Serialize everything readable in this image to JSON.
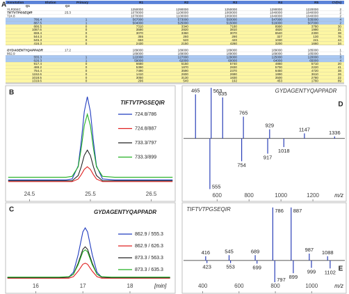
{
  "panel_labels": [
    "A",
    "B",
    "C",
    "D",
    "E"
  ],
  "table": {
    "header": [
      "Annotation",
      "Elution",
      "Primary",
      "R1",
      "R2",
      "R3",
      "R4",
      "R5",
      "CV(%)"
    ],
    "subheader": [
      "Q1",
      "Q3"
    ],
    "groups": [
      {
        "rows": [
          [
            "YLR304C",
            null,
            null,
            "1250000",
            "1290000",
            "1250000",
            "1290000",
            "1220000",
            "2"
          ],
          [
            "TIFTVTPGSEQIR",
            "25.3",
            null,
            "1070000",
            "1100000",
            "1060000",
            "1040000",
            "1040000",
            "2"
          ],
          [
            "724.8",
            null,
            null,
            "1070000",
            "1100000",
            "1060000",
            "1040000",
            "1040000",
            "2"
          ],
          [
            "786.4",
            null,
            "1",
            "567000",
            "573000",
            "593000",
            "547000",
            "535000",
            "4"
          ],
          [
            "887.5",
            null,
            "1",
            "504000",
            "525000",
            "515000",
            "516000",
            "507000",
            "2"
          ],
          [
            "886.5",
            null,
            "0",
            "7310",
            "3340",
            "7180",
            "8990",
            "3780",
            "30"
          ],
          [
            "1087.6",
            null,
            "0",
            "3590",
            "2820",
            "3810",
            "4820",
            "1990",
            "31"
          ],
          [
            "659.4",
            null,
            "0",
            "3070",
            "3360",
            "3070",
            "6540",
            "2300",
            "38"
          ],
          [
            "544.3",
            null,
            "0",
            "355",
            "260",
            "290",
            "327",
            "130",
            "76"
          ],
          [
            "645.3",
            null,
            "0",
            "650",
            "520",
            "420",
            "1030",
            "241",
            "44"
          ],
          [
            "416.3",
            null,
            "0",
            "2430",
            "2150",
            "4260",
            "3200",
            "1660",
            "34"
          ]
        ]
      },
      {
        "rows": [
          [
            "GYDAGENTYQAPPADR",
            "17.2",
            null,
            "189000",
            "189000",
            "189000",
            "189000",
            "185000",
            "1"
          ],
          [
            "862.9",
            null,
            null,
            "189000",
            "189000",
            "189000",
            "189000",
            "185000",
            "1"
          ],
          [
            "555.3",
            null,
            "1",
            "122000",
            "127000",
            "129000",
            "125000",
            "120000",
            "3"
          ],
          [
            "626.3",
            null,
            "1",
            "59000",
            "62000",
            "60000",
            "64000",
            "65000",
            "4"
          ],
          [
            "917.4",
            null,
            "0",
            "6680",
            "5150",
            "5740",
            "4860",
            "5710",
            "20"
          ],
          [
            "488.2",
            null,
            "0",
            "5390",
            "1870",
            "2830",
            "5700",
            "2220",
            "41"
          ],
          [
            "754.4",
            null,
            "0",
            "7490",
            "3590",
            "2370",
            "6450",
            "4720",
            "38"
          ],
          [
            "1152.6",
            null,
            "0",
            "1410",
            "2600",
            "2690",
            "1890",
            "3610",
            "26"
          ],
          [
            "1018.5",
            null,
            "0",
            "3050",
            "3130",
            "1830",
            "3500",
            "2780",
            "22"
          ],
          [
            "1319.6",
            null,
            "0",
            "296",
            "540",
            "192",
            "453",
            "1760",
            "89"
          ]
        ]
      }
    ]
  },
  "chart_data": [
    {
      "type": "line",
      "title": "TIFTVTPGSEQIR",
      "x": [
        24.15,
        24.8,
        25.1,
        25.2,
        25.3,
        25.35,
        25.4,
        25.45,
        25.5,
        25.55,
        25.6,
        25.7,
        25.9,
        26.2,
        26.85
      ],
      "series": [
        {
          "name": "724.8/786",
          "color": "#1f3bbf",
          "values": [
            3,
            3,
            3,
            4,
            19,
            47,
            81,
            98,
            81,
            47,
            19,
            4,
            3,
            3,
            3
          ]
        },
        {
          "name": "724.8/887",
          "color": "#e02020",
          "values": [
            1,
            1,
            1,
            1,
            4,
            9,
            15,
            18,
            15,
            9,
            4,
            1,
            1,
            1,
            1
          ]
        },
        {
          "name": "733.3/797",
          "color": "#202020",
          "values": [
            2,
            2,
            2,
            2,
            8,
            18,
            31,
            37,
            31,
            18,
            8,
            2,
            2,
            2,
            2
          ]
        },
        {
          "name": "733.3/899",
          "color": "#22b022",
          "values": [
            6,
            6,
            6,
            7,
            18,
            39,
            65,
            78,
            65,
            39,
            18,
            7,
            6,
            6,
            6
          ]
        }
      ],
      "xlim": [
        24.13,
        26.87
      ],
      "ylim": [
        0,
        105
      ],
      "xticks": [
        24.5,
        25.5,
        26.5
      ]
    },
    {
      "type": "line",
      "title": "GYDAGENTYQAPPADR",
      "xlabel": "[min]",
      "x": [
        15.4,
        16.0,
        16.5,
        16.7,
        16.8,
        16.9,
        17.0,
        17.05,
        17.1,
        17.2,
        17.3,
        17.4,
        17.6,
        18.0,
        18.5,
        18.85
      ],
      "series": [
        {
          "name": "862.9 / 555.3",
          "color": "#1f3bbf",
          "values": [
            2,
            2,
            2,
            3,
            13,
            48,
            94,
            102,
            94,
            48,
            13,
            3,
            2,
            2,
            2,
            2
          ]
        },
        {
          "name": "862.9 / 626.3",
          "color": "#e02020",
          "values": [
            1,
            1,
            1,
            1,
            4,
            15,
            29,
            31,
            29,
            15,
            4,
            1,
            1,
            1,
            1,
            1
          ]
        },
        {
          "name": "873.3 / 563.3",
          "color": "#202020",
          "values": [
            2,
            2,
            2,
            3,
            9,
            31,
            59,
            64,
            59,
            31,
            9,
            3,
            2,
            2,
            2,
            2
          ]
        },
        {
          "name": "873.3 / 635.3",
          "color": "#22b022",
          "values": [
            3,
            3,
            3,
            4,
            9,
            28,
            54,
            58,
            54,
            28,
            9,
            4,
            3,
            3,
            3,
            3
          ]
        }
      ],
      "xlim": [
        15.39,
        18.9
      ],
      "ylim": [
        0,
        140
      ],
      "xticks": [
        16,
        17,
        18
      ]
    },
    {
      "type": "stem",
      "title": "GYDAGENTYQAPPADR",
      "xlabel": "m/z",
      "color": "#2a3fb8",
      "x": [
        465,
        563,
        635,
        765,
        929,
        1147,
        1336,
        555,
        754,
        917,
        1018
      ],
      "values": [
        87,
        100,
        81,
        43,
        18,
        10,
        4,
        -100,
        -45,
        -30,
        -17
      ],
      "xlim": [
        390,
        1400
      ],
      "ylim": [
        -120,
        100
      ],
      "xticks": [
        600,
        800,
        1000,
        1200
      ]
    },
    {
      "type": "stem",
      "title": "TIFTVTPGSEQIR",
      "xlabel": "m/z",
      "color": "#2a3fb8",
      "x": [
        416,
        545,
        689,
        786,
        887,
        987,
        1088,
        423,
        553,
        699,
        797,
        899,
        999,
        1102
      ],
      "values": [
        8,
        10,
        10,
        100,
        100,
        13,
        8,
        -5,
        -5,
        -6,
        -41,
        -24,
        -14,
        -15
      ],
      "xlim": [
        294,
        1183
      ],
      "ylim": [
        -58,
        105
      ],
      "xticks": [
        400,
        600,
        800,
        1000
      ]
    }
  ]
}
